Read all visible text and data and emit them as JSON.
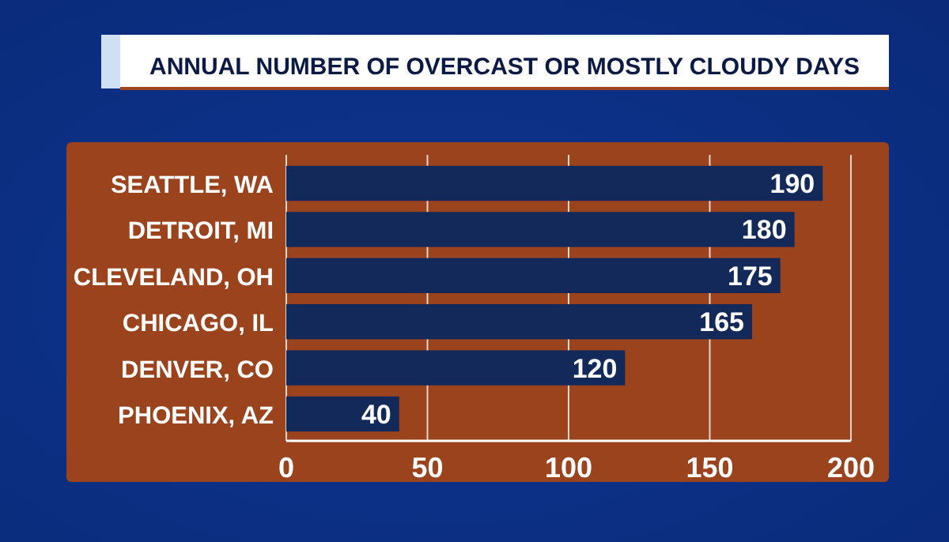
{
  "chart_data": {
    "type": "bar",
    "orientation": "horizontal",
    "title": "ANNUAL NUMBER OF OVERCAST OR MOSTLY CLOUDY DAYS",
    "categories": [
      "SEATTLE, WA",
      "DETROIT, MI",
      "CLEVELAND, OH",
      "CHICAGO, IL",
      "DENVER, CO",
      "PHOENIX, AZ"
    ],
    "values": [
      190,
      180,
      175,
      165,
      120,
      40
    ],
    "color": "#13295a",
    "xlim": [
      0,
      200
    ],
    "xticks": [
      0,
      50,
      100,
      150,
      200
    ],
    "grid": "x",
    "data_labels": true
  }
}
